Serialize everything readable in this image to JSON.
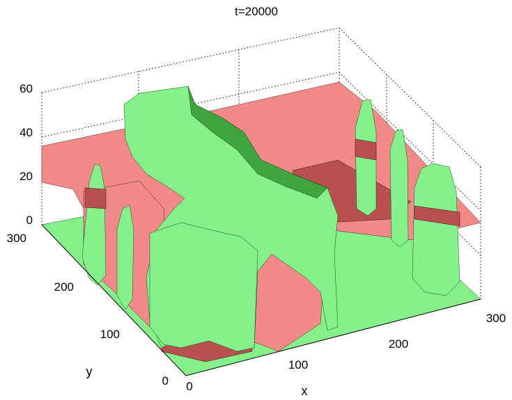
{
  "chart_data": {
    "type": "surface",
    "title": "t=20000",
    "xlabel": "x",
    "ylabel": "y",
    "zlabel": "",
    "xlim": [
      0,
      300
    ],
    "ylim": [
      0,
      300
    ],
    "zlim": [
      0,
      60
    ],
    "xticks": [
      "0",
      "100",
      "200",
      "300"
    ],
    "yticks": [
      "0",
      "100",
      "200",
      "300"
    ],
    "zticks": [
      "0",
      "20",
      "40",
      "60"
    ],
    "grid": true,
    "series": [
      {
        "name": "",
        "color": "#f38a8a",
        "description_level": 35,
        "base_level": 0
      },
      {
        "name": "",
        "color": "#86f08a",
        "base_level": 0,
        "peak_level": 55
      }
    ]
  },
  "colors": {
    "red_surface": "#f38a8a",
    "green_surface": "#86f08a",
    "mesh_line": "#222222"
  }
}
